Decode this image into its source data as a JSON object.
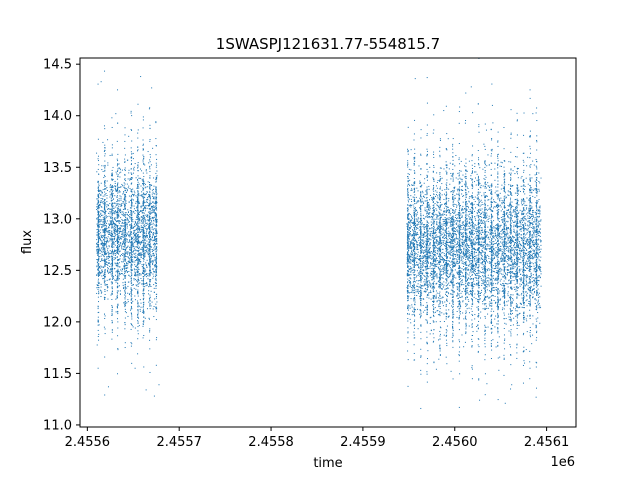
{
  "chart_data": {
    "type": "scatter",
    "title": "1SWASPJ121631.77-554815.7",
    "xlabel": "time",
    "ylabel": "flux",
    "x_offset_label": "1e6",
    "xlim": [
      2455592,
      2456132
    ],
    "ylim": [
      10.98,
      14.56
    ],
    "x_ticks": [
      2455610,
      2455670,
      2455730,
      2455790,
      2455850,
      2455910,
      2455970,
      2456030,
      2456090
    ],
    "x_tick_labels": [
      "2.4556",
      "",
      "2.4557",
      "",
      "2.4558",
      "",
      "2.4559",
      "",
      "2.4560",
      "",
      "2.4561"
    ],
    "x_tick_values": [
      2455600,
      2455650,
      2455700,
      2455750,
      2455800,
      2455850,
      2455900,
      2455950,
      2456000,
      2456050,
      2456100
    ],
    "y_ticks": [
      11.0,
      11.5,
      12.0,
      12.5,
      13.0,
      13.5,
      14.0,
      14.5
    ],
    "y_tick_labels": [
      "11.0",
      "11.5",
      "12.0",
      "12.5",
      "13.0",
      "13.5",
      "14.0",
      "14.5"
    ],
    "grid": false,
    "marker_color": "#1f77b4",
    "series": [
      {
        "segments": [
          {
            "start": 2455610,
            "end": 2455676,
            "center": 12.82,
            "spread": 0.3
          },
          {
            "start": 2455948,
            "end": 2456094,
            "center": 12.72,
            "spread": 0.32
          }
        ],
        "nights": [
          2455612,
          2455619,
          2455627,
          2455633,
          2455641,
          2455648,
          2455655,
          2455661,
          2455668,
          2455675,
          2455949,
          2455956,
          2455963,
          2455970,
          2455977,
          2455984,
          2455991,
          2455998,
          2456005,
          2456012,
          2456019,
          2456026,
          2456033,
          2456040,
          2456047,
          2456054,
          2456061,
          2456068,
          2456075,
          2456082,
          2456089
        ],
        "outliers": [
          [
            2455615,
            14.33
          ],
          [
            2455623,
            11.37
          ],
          [
            2455631,
            14.02
          ],
          [
            2455645,
            13.8
          ],
          [
            2455652,
            11.55
          ],
          [
            2455658,
            14.38
          ],
          [
            2455664,
            11.34
          ],
          [
            2455670,
            14.27
          ],
          [
            2455673,
            11.28
          ],
          [
            2455678,
            11.39
          ],
          [
            2455957,
            14.36
          ],
          [
            2455963,
            11.16
          ],
          [
            2455970,
            14.37
          ],
          [
            2455980,
            11.54
          ],
          [
            2455988,
            14.05
          ],
          [
            2455996,
            11.52
          ],
          [
            2456005,
            11.17
          ],
          [
            2456012,
            14.22
          ],
          [
            2456018,
            14.28
          ],
          [
            2456027,
            11.24
          ],
          [
            2456035,
            11.4
          ],
          [
            2456041,
            14.1
          ],
          [
            2456048,
            11.53
          ],
          [
            2456055,
            11.21
          ],
          [
            2456062,
            11.39
          ],
          [
            2456068,
            13.95
          ],
          [
            2456076,
            11.6
          ],
          [
            2456085,
            14.02
          ]
        ]
      }
    ]
  }
}
